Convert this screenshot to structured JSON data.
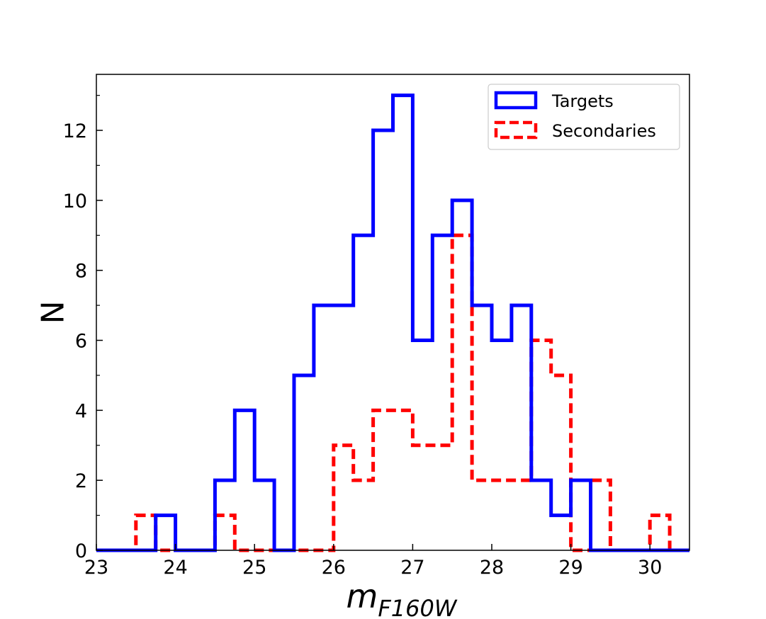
{
  "chart_data": {
    "type": "histogram",
    "title": "",
    "xlabel": "m",
    "xlabel_subscript": "F160W",
    "ylabel": "N",
    "xlim": [
      23,
      30.5
    ],
    "ylim": [
      0,
      13.6
    ],
    "x_ticks": [
      23,
      24,
      25,
      26,
      27,
      28,
      29,
      30
    ],
    "x_tick_labels": [
      "23",
      "24",
      "25",
      "26",
      "27",
      "28",
      "29",
      "30"
    ],
    "y_ticks": [
      0,
      2,
      4,
      6,
      8,
      10,
      12
    ],
    "y_tick_labels": [
      "0",
      "2",
      "4",
      "6",
      "8",
      "10",
      "12"
    ],
    "y_minor_ticks": [
      1,
      3,
      5,
      7,
      9,
      11,
      13
    ],
    "grid": false,
    "legend_position": "top-right",
    "bin_edges": [
      23.0,
      23.25,
      23.5,
      23.75,
      24.0,
      24.25,
      24.5,
      24.75,
      25.0,
      25.25,
      25.5,
      25.75,
      26.0,
      26.25,
      26.5,
      26.75,
      27.0,
      27.25,
      27.5,
      27.75,
      28.0,
      28.25,
      28.5,
      28.75,
      29.0,
      29.25,
      29.5,
      29.75,
      30.0,
      30.25,
      30.5
    ],
    "series": [
      {
        "name": "Targets",
        "color": "#0000ff",
        "style": "solid",
        "counts": [
          0,
          0,
          0,
          1,
          0,
          0,
          2,
          4,
          2,
          0,
          5,
          7,
          7,
          9,
          12,
          13,
          6,
          9,
          10,
          7,
          6,
          7,
          2,
          1,
          2,
          0,
          0,
          0,
          0,
          0
        ]
      },
      {
        "name": "Secondaries",
        "color": "#ff0000",
        "style": "dashed",
        "counts": [
          0,
          0,
          1,
          0,
          0,
          0,
          1,
          0,
          0,
          0,
          0,
          0,
          3,
          2,
          4,
          4,
          3,
          3,
          9,
          2,
          2,
          2,
          6,
          5,
          0,
          2,
          0,
          0,
          1,
          0
        ]
      }
    ]
  }
}
